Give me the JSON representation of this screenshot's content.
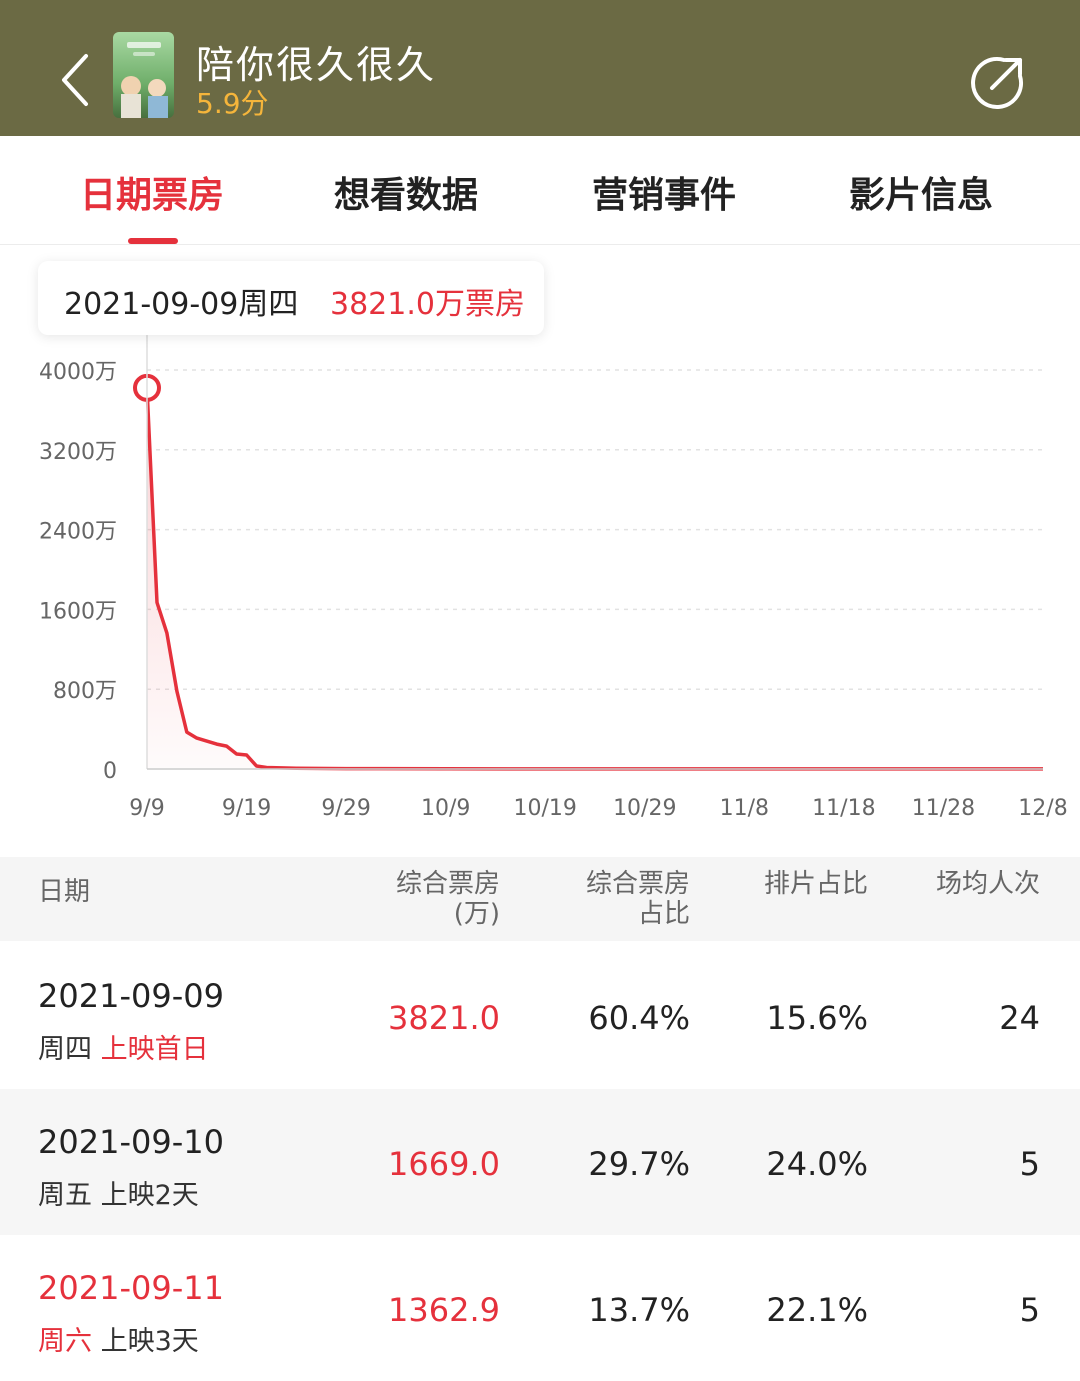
{
  "header": {
    "title": "陪你很久很久",
    "score": "5.9分",
    "back_icon": "chevron-left-icon",
    "share_icon": "share-icon",
    "bg_color": "#6b6a44"
  },
  "tabs": [
    {
      "label": "日期票房",
      "active": true
    },
    {
      "label": "想看数据",
      "active": false
    },
    {
      "label": "营销事件",
      "active": false
    },
    {
      "label": "影片信息",
      "active": false
    }
  ],
  "tooltip": {
    "date": "2021-09-09周四",
    "value": "3821.0万票房"
  },
  "chart_data": {
    "type": "area",
    "x_tick_labels": [
      "9/9",
      "9/19",
      "9/29",
      "10/9",
      "10/19",
      "10/29",
      "11/8",
      "11/18",
      "11/28",
      "12/8"
    ],
    "y_tick_labels": [
      "0",
      "800万",
      "1600万",
      "2400万",
      "3200万",
      "4000万"
    ],
    "ylim": [
      0,
      4000
    ],
    "xlim_days": [
      0,
      90
    ],
    "x_days": [
      0,
      1,
      2,
      3,
      4,
      5,
      6,
      7,
      8,
      9,
      10,
      11,
      12,
      15,
      20,
      30,
      40,
      50,
      60,
      70,
      80,
      90
    ],
    "values": [
      3821.0,
      1669.0,
      1362.9,
      780,
      370,
      310,
      280,
      250,
      230,
      150,
      140,
      30,
      15,
      8,
      4,
      2,
      1,
      1,
      1,
      1,
      1,
      1
    ],
    "highlight_index": 0,
    "grid": true,
    "line_color": "#e5313c"
  },
  "table": {
    "headers": [
      {
        "lines": [
          "日期"
        ]
      },
      {
        "lines": [
          "综合票房",
          "(万)"
        ]
      },
      {
        "lines": [
          "综合票房",
          "占比"
        ]
      },
      {
        "lines": [
          "排片占比"
        ]
      },
      {
        "lines": [
          "场均人次"
        ]
      }
    ],
    "rows": [
      {
        "date": "2021-09-09",
        "weekday": "周四",
        "release": "上映首日",
        "box_office": "3821.0",
        "share": "60.4%",
        "screening": "15.6%",
        "avg": "24"
      },
      {
        "date": "2021-09-10",
        "weekday": "周五",
        "release": "上映2天",
        "box_office": "1669.0",
        "share": "29.7%",
        "screening": "24.0%",
        "avg": "5"
      },
      {
        "date": "2021-09-11",
        "weekday": "周六",
        "release": "上映3天",
        "box_office": "1362.9",
        "share": "13.7%",
        "screening": "22.1%",
        "avg": "5"
      }
    ]
  }
}
